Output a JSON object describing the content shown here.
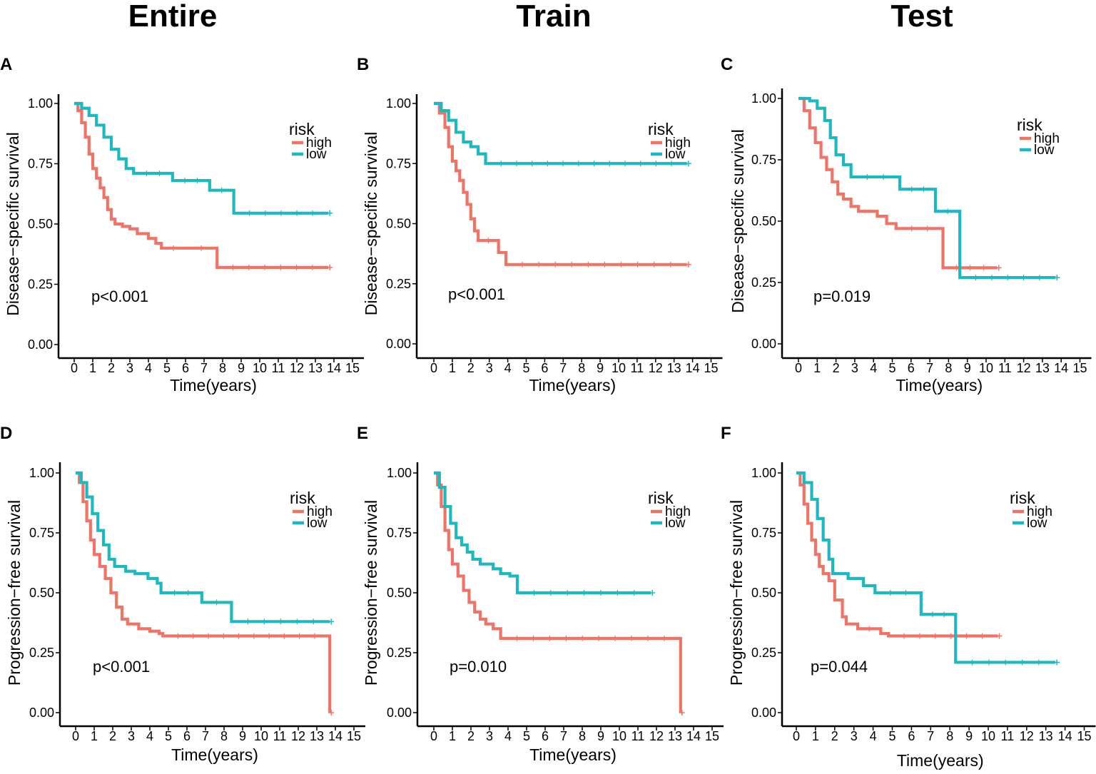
{
  "column_headers": [
    "Entire",
    "Train",
    "Test"
  ],
  "colors": {
    "high": "#ee7468",
    "low": "#1fb8be"
  },
  "chart_data": [
    {
      "panel": "A",
      "type": "line",
      "title": "",
      "xlabel": "Time(years)",
      "ylabel": "Disease−specific survival",
      "xticks": [
        0,
        1,
        2,
        3,
        4,
        5,
        6,
        7,
        8,
        9,
        10,
        11,
        12,
        13,
        14,
        15
      ],
      "yticks": [
        "0.00",
        "0.25",
        "0.50",
        "0.75",
        "1.00"
      ],
      "xlim": [
        0,
        15
      ],
      "ylim": [
        0,
        1
      ],
      "legend_title": "risk",
      "pvalue": "p<0.001",
      "series": [
        {
          "name": "high",
          "points": [
            [
              0,
              1.0
            ],
            [
              0.2,
              0.97
            ],
            [
              0.4,
              0.92
            ],
            [
              0.6,
              0.86
            ],
            [
              0.8,
              0.79
            ],
            [
              1.0,
              0.73
            ],
            [
              1.2,
              0.69
            ],
            [
              1.4,
              0.65
            ],
            [
              1.6,
              0.61
            ],
            [
              1.8,
              0.56
            ],
            [
              2.0,
              0.52
            ],
            [
              2.2,
              0.5
            ],
            [
              2.6,
              0.49
            ],
            [
              3.0,
              0.48
            ],
            [
              3.4,
              0.46
            ],
            [
              4.0,
              0.44
            ],
            [
              4.4,
              0.42
            ],
            [
              4.7,
              0.4
            ],
            [
              6.0,
              0.4
            ],
            [
              7.7,
              0.4
            ],
            [
              7.7,
              0.32
            ],
            [
              13.7,
              0.32
            ]
          ]
        },
        {
          "name": "low",
          "points": [
            [
              0,
              1.0
            ],
            [
              0.4,
              0.98
            ],
            [
              0.8,
              0.95
            ],
            [
              1.2,
              0.91
            ],
            [
              1.6,
              0.86
            ],
            [
              2.0,
              0.81
            ],
            [
              2.4,
              0.77
            ],
            [
              2.8,
              0.73
            ],
            [
              3.2,
              0.71
            ],
            [
              5.3,
              0.71
            ],
            [
              5.3,
              0.68
            ],
            [
              7.3,
              0.68
            ],
            [
              7.3,
              0.64
            ],
            [
              8.6,
              0.64
            ],
            [
              8.6,
              0.545
            ],
            [
              13.7,
              0.545
            ]
          ]
        }
      ]
    },
    {
      "panel": "B",
      "type": "line",
      "title": "",
      "xlabel": "Time(years)",
      "ylabel": "Disease−specific survival",
      "xticks": [
        0,
        1,
        2,
        3,
        4,
        5,
        6,
        7,
        8,
        9,
        10,
        11,
        12,
        13,
        14,
        15
      ],
      "yticks": [
        "0.00",
        "0.25",
        "0.50",
        "0.75",
        "1.00"
      ],
      "xlim": [
        0,
        15
      ],
      "ylim": [
        0,
        1
      ],
      "legend_title": "risk",
      "pvalue": "p<0.001",
      "series": [
        {
          "name": "high",
          "points": [
            [
              0,
              1.0
            ],
            [
              0.3,
              0.96
            ],
            [
              0.6,
              0.9
            ],
            [
              0.8,
              0.82
            ],
            [
              1.0,
              0.76
            ],
            [
              1.2,
              0.72
            ],
            [
              1.4,
              0.68
            ],
            [
              1.6,
              0.63
            ],
            [
              1.8,
              0.58
            ],
            [
              2.0,
              0.52
            ],
            [
              2.2,
              0.47
            ],
            [
              2.4,
              0.43
            ],
            [
              3.5,
              0.43
            ],
            [
              3.5,
              0.38
            ],
            [
              3.9,
              0.38
            ],
            [
              3.9,
              0.33
            ],
            [
              13.7,
              0.33
            ]
          ]
        },
        {
          "name": "low",
          "points": [
            [
              0,
              1.0
            ],
            [
              0.4,
              0.97
            ],
            [
              0.8,
              0.93
            ],
            [
              1.2,
              0.88
            ],
            [
              1.6,
              0.84
            ],
            [
              2.0,
              0.82
            ],
            [
              2.4,
              0.79
            ],
            [
              2.8,
              0.75
            ],
            [
              13.7,
              0.75
            ]
          ]
        }
      ]
    },
    {
      "panel": "C",
      "type": "line",
      "title": "",
      "xlabel": "Time(years)",
      "ylabel": "Disease−specific survival",
      "xticks": [
        0,
        1,
        2,
        3,
        4,
        5,
        6,
        7,
        8,
        9,
        10,
        11,
        12,
        13,
        14,
        15
      ],
      "yticks": [
        "0.00",
        "0.25",
        "0.50",
        "0.75",
        "1.00"
      ],
      "xlim": [
        0,
        15
      ],
      "ylim": [
        0,
        1
      ],
      "legend_title": "risk",
      "pvalue": "p=0.019",
      "series": [
        {
          "name": "high",
          "points": [
            [
              0,
              1.0
            ],
            [
              0.3,
              0.95
            ],
            [
              0.6,
              0.88
            ],
            [
              0.9,
              0.82
            ],
            [
              1.2,
              0.76
            ],
            [
              1.5,
              0.71
            ],
            [
              1.8,
              0.66
            ],
            [
              2.1,
              0.61
            ],
            [
              2.4,
              0.59
            ],
            [
              2.8,
              0.56
            ],
            [
              3.2,
              0.54
            ],
            [
              4.2,
              0.52
            ],
            [
              4.7,
              0.49
            ],
            [
              5.2,
              0.47
            ],
            [
              7.7,
              0.47
            ],
            [
              7.7,
              0.31
            ],
            [
              10.6,
              0.31
            ]
          ]
        },
        {
          "name": "low",
          "points": [
            [
              0,
              1.0
            ],
            [
              0.6,
              0.99
            ],
            [
              1.0,
              0.96
            ],
            [
              1.4,
              0.91
            ],
            [
              1.7,
              0.84
            ],
            [
              2.0,
              0.77
            ],
            [
              2.4,
              0.73
            ],
            [
              2.8,
              0.68
            ],
            [
              5.4,
              0.68
            ],
            [
              5.4,
              0.63
            ],
            [
              7.3,
              0.63
            ],
            [
              7.3,
              0.54
            ],
            [
              8.6,
              0.54
            ],
            [
              8.6,
              0.27
            ],
            [
              13.7,
              0.27
            ]
          ]
        }
      ]
    },
    {
      "panel": "D",
      "type": "line",
      "title": "",
      "xlabel": "Time(years)",
      "ylabel": "Progression−free survival",
      "xticks": [
        0,
        1,
        2,
        3,
        4,
        5,
        6,
        7,
        8,
        9,
        10,
        11,
        12,
        13,
        14,
        15
      ],
      "yticks": [
        "0.00",
        "0.25",
        "0.50",
        "0.75",
        "1.00"
      ],
      "xlim": [
        0,
        15
      ],
      "ylim": [
        0,
        1
      ],
      "legend_title": "risk",
      "pvalue": "p<0.001",
      "series": [
        {
          "name": "high",
          "points": [
            [
              0,
              1.0
            ],
            [
              0.2,
              0.96
            ],
            [
              0.4,
              0.88
            ],
            [
              0.6,
              0.8
            ],
            [
              0.8,
              0.72
            ],
            [
              1.0,
              0.66
            ],
            [
              1.3,
              0.61
            ],
            [
              1.6,
              0.56
            ],
            [
              1.9,
              0.5
            ],
            [
              2.2,
              0.44
            ],
            [
              2.5,
              0.39
            ],
            [
              2.8,
              0.37
            ],
            [
              3.4,
              0.35
            ],
            [
              4.0,
              0.34
            ],
            [
              4.5,
              0.33
            ],
            [
              4.7,
              0.32
            ],
            [
              13.7,
              0.32
            ],
            [
              13.7,
              0.0
            ]
          ]
        },
        {
          "name": "low",
          "points": [
            [
              0,
              1.0
            ],
            [
              0.3,
              0.96
            ],
            [
              0.6,
              0.9
            ],
            [
              0.9,
              0.83
            ],
            [
              1.2,
              0.76
            ],
            [
              1.5,
              0.7
            ],
            [
              1.8,
              0.64
            ],
            [
              2.1,
              0.61
            ],
            [
              2.7,
              0.59
            ],
            [
              3.2,
              0.58
            ],
            [
              3.9,
              0.56
            ],
            [
              4.4,
              0.54
            ],
            [
              4.6,
              0.5
            ],
            [
              6.8,
              0.5
            ],
            [
              6.8,
              0.46
            ],
            [
              8.4,
              0.46
            ],
            [
              8.4,
              0.38
            ],
            [
              13.7,
              0.38
            ]
          ]
        }
      ]
    },
    {
      "panel": "E",
      "type": "line",
      "title": "",
      "xlabel": "Time(years)",
      "ylabel": "Progression−free survival",
      "xticks": [
        0,
        1,
        2,
        3,
        4,
        5,
        6,
        7,
        8,
        9,
        10,
        11,
        12,
        13,
        14,
        15
      ],
      "yticks": [
        "0.00",
        "0.25",
        "0.50",
        "0.75",
        "1.00"
      ],
      "xlim": [
        0,
        15
      ],
      "ylim": [
        0,
        1
      ],
      "legend_title": "risk",
      "pvalue": "p=0.010",
      "series": [
        {
          "name": "high",
          "points": [
            [
              0,
              1.0
            ],
            [
              0.2,
              0.95
            ],
            [
              0.4,
              0.86
            ],
            [
              0.6,
              0.76
            ],
            [
              0.8,
              0.68
            ],
            [
              1.0,
              0.62
            ],
            [
              1.3,
              0.57
            ],
            [
              1.6,
              0.51
            ],
            [
              1.9,
              0.46
            ],
            [
              2.2,
              0.42
            ],
            [
              2.5,
              0.39
            ],
            [
              2.8,
              0.37
            ],
            [
              3.2,
              0.35
            ],
            [
              3.6,
              0.35
            ],
            [
              3.6,
              0.31
            ],
            [
              13.3,
              0.31
            ],
            [
              13.3,
              0.0
            ]
          ]
        },
        {
          "name": "low",
          "points": [
            [
              0,
              1.0
            ],
            [
              0.3,
              0.94
            ],
            [
              0.6,
              0.86
            ],
            [
              0.9,
              0.79
            ],
            [
              1.2,
              0.73
            ],
            [
              1.5,
              0.7
            ],
            [
              1.8,
              0.67
            ],
            [
              2.1,
              0.64
            ],
            [
              2.5,
              0.62
            ],
            [
              3.2,
              0.6
            ],
            [
              3.6,
              0.58
            ],
            [
              4.1,
              0.57
            ],
            [
              4.5,
              0.57
            ],
            [
              4.5,
              0.5
            ],
            [
              11.7,
              0.5
            ]
          ]
        }
      ]
    },
    {
      "panel": "F",
      "type": "line",
      "title": "",
      "xlabel": "Time(years)",
      "ylabel": "Progression−free survival",
      "xticks": [
        0,
        1,
        2,
        3,
        4,
        5,
        6,
        7,
        8,
        9,
        10,
        11,
        12,
        13,
        14,
        15
      ],
      "yticks": [
        "0.00",
        "0.25",
        "0.50",
        "0.75",
        "1.00"
      ],
      "xlim": [
        0,
        15
      ],
      "ylim": [
        0,
        1
      ],
      "legend_title": "risk",
      "pvalue": "p=0.044",
      "series": [
        {
          "name": "high",
          "points": [
            [
              0,
              1.0
            ],
            [
              0.2,
              0.95
            ],
            [
              0.4,
              0.87
            ],
            [
              0.6,
              0.79
            ],
            [
              0.8,
              0.72
            ],
            [
              1.0,
              0.66
            ],
            [
              1.2,
              0.61
            ],
            [
              1.4,
              0.58
            ],
            [
              1.7,
              0.55
            ],
            [
              2.0,
              0.47
            ],
            [
              2.4,
              0.4
            ],
            [
              2.6,
              0.37
            ],
            [
              3.2,
              0.35
            ],
            [
              4.4,
              0.33
            ],
            [
              4.8,
              0.32
            ],
            [
              10.5,
              0.32
            ]
          ]
        },
        {
          "name": "low",
          "points": [
            [
              0,
              1.0
            ],
            [
              0.4,
              0.96
            ],
            [
              0.8,
              0.89
            ],
            [
              1.1,
              0.81
            ],
            [
              1.4,
              0.72
            ],
            [
              1.7,
              0.64
            ],
            [
              1.9,
              0.58
            ],
            [
              2.7,
              0.56
            ],
            [
              3.5,
              0.53
            ],
            [
              4.1,
              0.5
            ],
            [
              6.5,
              0.5
            ],
            [
              6.5,
              0.41
            ],
            [
              8.3,
              0.41
            ],
            [
              8.3,
              0.21
            ],
            [
              13.5,
              0.21
            ]
          ]
        }
      ]
    }
  ]
}
